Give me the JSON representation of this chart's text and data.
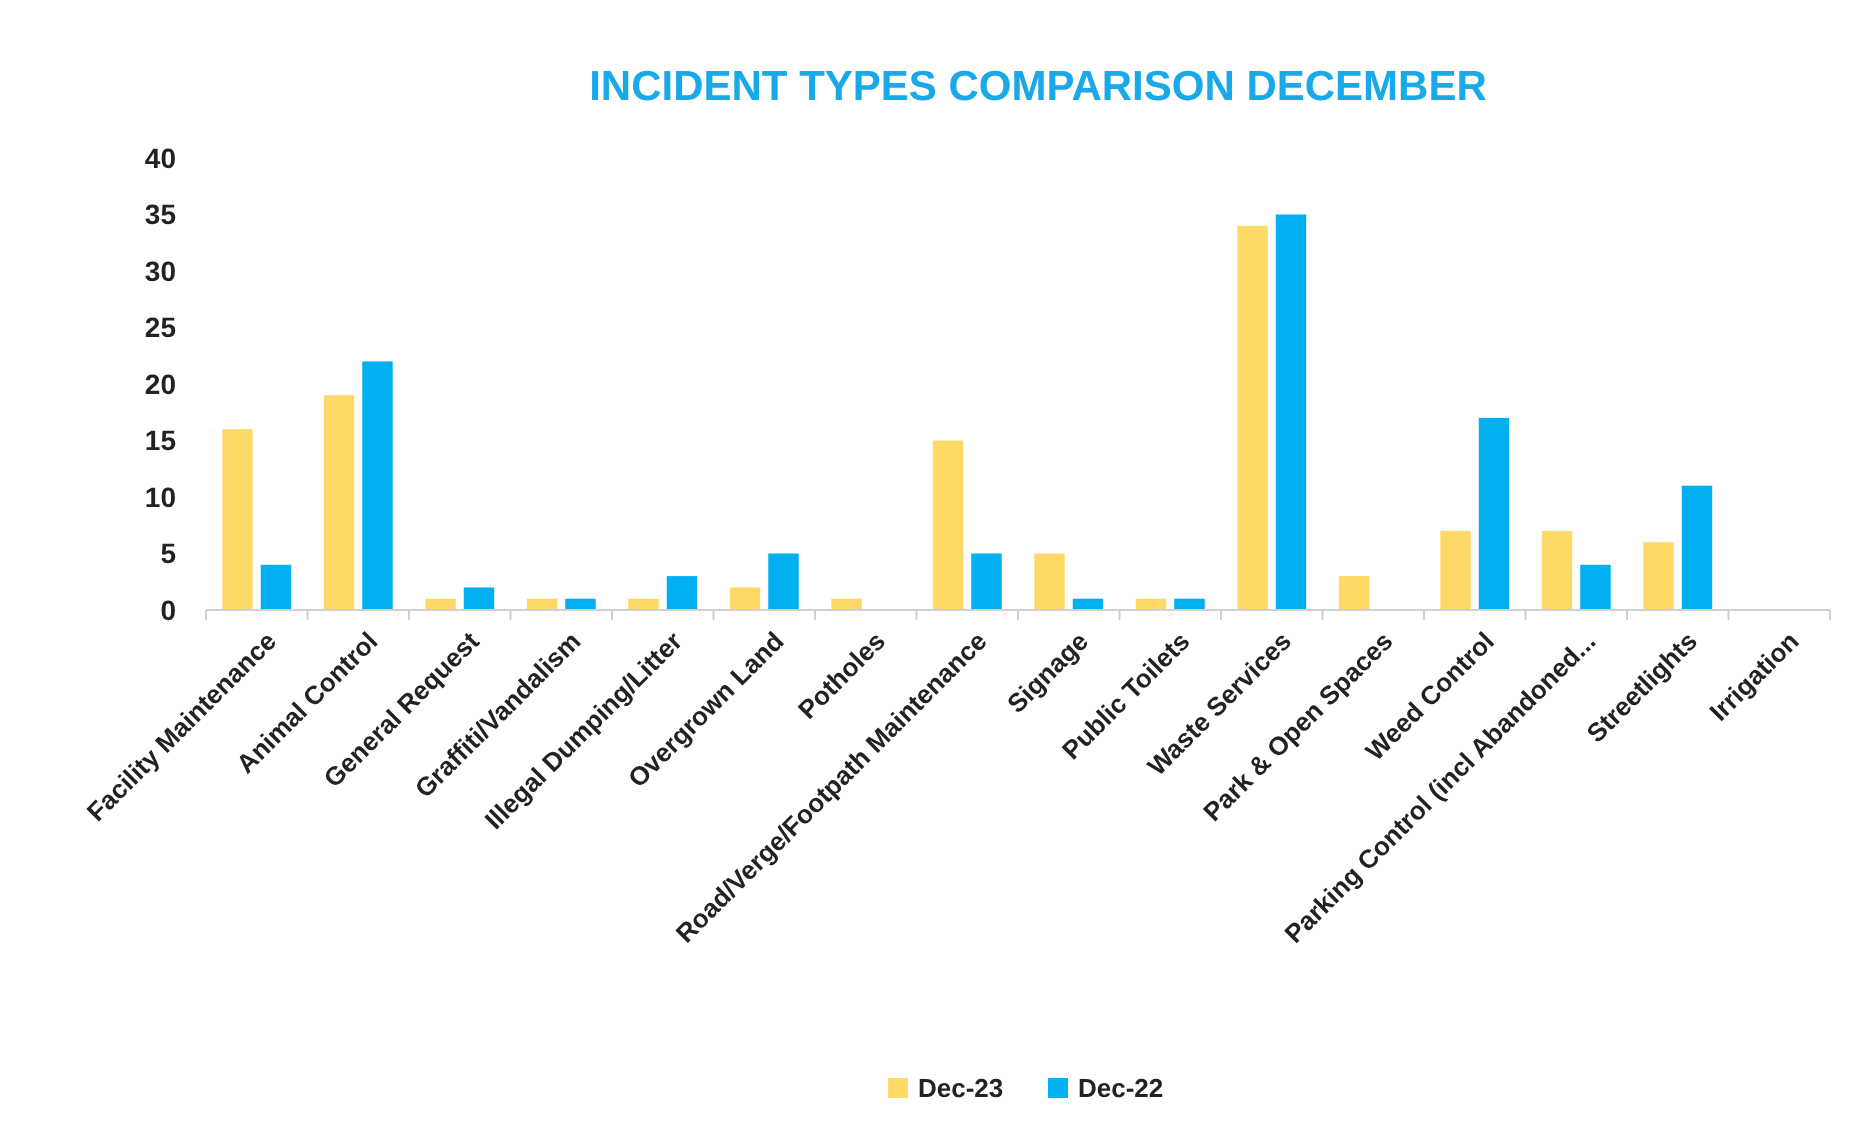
{
  "chart_data": {
    "type": "bar",
    "title": "INCIDENT TYPES COMPARISON DECEMBER",
    "categories": [
      "Facility Maintenance",
      "Animal Control",
      "General Request",
      "Graffiti/Vandalism",
      "Illegal Dumping/Litter",
      "Overgrown Land",
      "Potholes",
      "Road/Verge/Footpath Maintenance",
      "Signage",
      "Public Toilets",
      "Waste Services",
      "Park & Open Spaces",
      "Weed Control",
      "Parking Control (incl Abandoned...",
      "Streetlights",
      "Irrigation"
    ],
    "series": [
      {
        "name": "Dec-23",
        "color": "#ffd966",
        "values": [
          16,
          19,
          1,
          1,
          1,
          2,
          1,
          15,
          5,
          1,
          34,
          3,
          7,
          7,
          6,
          0
        ]
      },
      {
        "name": "Dec-22",
        "color": "#00b0f0",
        "values": [
          4,
          22,
          2,
          1,
          3,
          5,
          0,
          5,
          1,
          1,
          35,
          0,
          17,
          4,
          11,
          0
        ]
      }
    ],
    "ylim": [
      0,
      40
    ],
    "yticks": [
      0,
      5,
      10,
      15,
      20,
      25,
      30,
      35,
      40
    ],
    "grid": false,
    "legend": "bottom"
  }
}
